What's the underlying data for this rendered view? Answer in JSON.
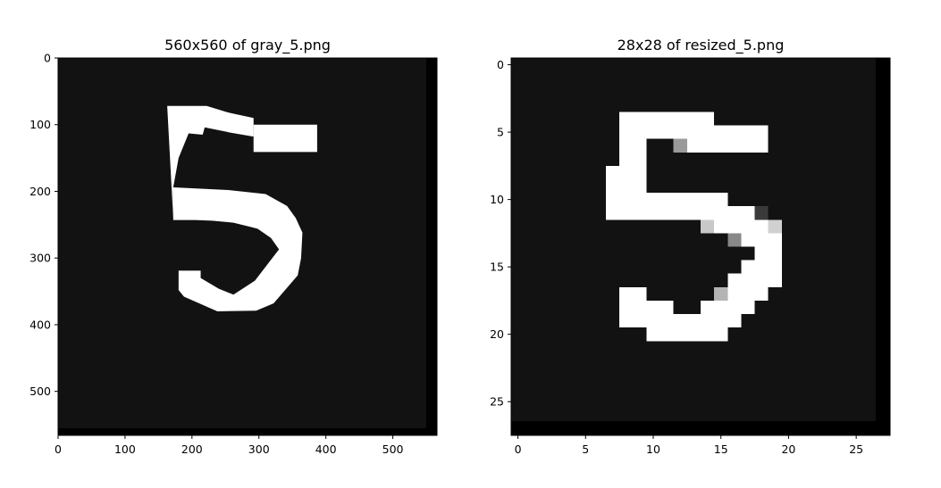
{
  "chart_data": [
    {
      "type": "heatmap",
      "title": "560x560 of gray_5.png",
      "xlabel": "",
      "ylabel": "",
      "xlim": [
        0,
        566
      ],
      "ylim": [
        566,
        0
      ],
      "x_ticks": [
        "0",
        "100",
        "200",
        "300",
        "400",
        "500"
      ],
      "y_ticks": [
        "0",
        "100",
        "200",
        "300",
        "400",
        "500"
      ],
      "x_tick_values": [
        0,
        100,
        200,
        300,
        400,
        500
      ],
      "y_tick_values": [
        0,
        100,
        200,
        300,
        400,
        500
      ],
      "colormap": "gray",
      "background_gray": "#121212",
      "border_color": "#000000",
      "content": "handwritten digit 5 in white",
      "stroke_polygons": [
        [
          [
            163,
            72
          ],
          [
            222,
            72
          ],
          [
            255,
            82
          ],
          [
            292,
            90
          ],
          [
            292,
            118
          ],
          [
            258,
            112
          ],
          [
            219,
            104
          ],
          [
            216,
            115
          ],
          [
            195,
            113
          ],
          [
            180,
            150
          ],
          [
            172,
            194
          ],
          [
            172,
            240
          ]
        ],
        [
          [
            292,
            100
          ],
          [
            387,
            100
          ],
          [
            387,
            141
          ],
          [
            292,
            141
          ]
        ],
        [
          [
            172,
            194
          ],
          [
            254,
            198
          ],
          [
            310,
            204
          ],
          [
            342,
            222
          ],
          [
            355,
            240
          ],
          [
            365,
            262
          ],
          [
            363,
            300
          ],
          [
            358,
            326
          ],
          [
            322,
            368
          ],
          [
            296,
            379
          ],
          [
            238,
            380
          ],
          [
            188,
            358
          ],
          [
            180,
            348
          ],
          [
            180,
            319
          ],
          [
            213,
            319
          ],
          [
            213,
            330
          ],
          [
            240,
            346
          ],
          [
            262,
            355
          ],
          [
            294,
            334
          ],
          [
            330,
            287
          ],
          [
            318,
            270
          ],
          [
            298,
            256
          ],
          [
            262,
            247
          ],
          [
            230,
            244
          ],
          [
            205,
            243
          ],
          [
            172,
            243
          ]
        ]
      ]
    },
    {
      "type": "heatmap",
      "title": "28x28 of resized_5.png",
      "xlabel": "",
      "ylabel": "",
      "xlim": [
        -0.5,
        27.5
      ],
      "ylim": [
        27.5,
        -0.5
      ],
      "x_ticks": [
        "0",
        "5",
        "10",
        "15",
        "20",
        "25"
      ],
      "y_ticks": [
        "0",
        "5",
        "10",
        "15",
        "20",
        "25"
      ],
      "x_tick_values": [
        0,
        5,
        10,
        15,
        20,
        25
      ],
      "y_tick_values": [
        0,
        5,
        10,
        15,
        20,
        25
      ],
      "colormap": "gray",
      "background_gray": "#121212",
      "border_color": "#000000",
      "pixels": [
        {
          "row": 4,
          "col_start": 8,
          "col_end": 14,
          "color": "#ffffff"
        },
        {
          "row": 5,
          "col_start": 8,
          "col_end": 18,
          "color": "#ffffff"
        },
        {
          "row": 6,
          "col_start": 8,
          "col_end": 9,
          "color": "#ffffff"
        },
        {
          "row": 6,
          "col_start": 12,
          "col_end": 12,
          "color": "#9a9a9a"
        },
        {
          "row": 6,
          "col_start": 13,
          "col_end": 18,
          "color": "#ffffff"
        },
        {
          "row": 7,
          "col_start": 8,
          "col_end": 9,
          "color": "#ffffff"
        },
        {
          "row": 8,
          "col_start": 7,
          "col_end": 9,
          "color": "#ffffff"
        },
        {
          "row": 9,
          "col_start": 7,
          "col_end": 9,
          "color": "#ffffff"
        },
        {
          "row": 10,
          "col_start": 7,
          "col_end": 15,
          "color": "#ffffff"
        },
        {
          "row": 11,
          "col_start": 7,
          "col_end": 17,
          "color": "#ffffff"
        },
        {
          "row": 11,
          "col_start": 18,
          "col_end": 18,
          "color": "#3a3a3a"
        },
        {
          "row": 12,
          "col_start": 14,
          "col_end": 14,
          "color": "#c8c8c8"
        },
        {
          "row": 12,
          "col_start": 15,
          "col_end": 18,
          "color": "#ffffff"
        },
        {
          "row": 12,
          "col_start": 19,
          "col_end": 19,
          "color": "#d0d0d0"
        },
        {
          "row": 13,
          "col_start": 16,
          "col_end": 16,
          "color": "#888888"
        },
        {
          "row": 13,
          "col_start": 17,
          "col_end": 19,
          "color": "#ffffff"
        },
        {
          "row": 14,
          "col_start": 18,
          "col_end": 19,
          "color": "#ffffff"
        },
        {
          "row": 15,
          "col_start": 17,
          "col_end": 19,
          "color": "#ffffff"
        },
        {
          "row": 16,
          "col_start": 16,
          "col_end": 19,
          "color": "#ffffff"
        },
        {
          "row": 17,
          "col_start": 8,
          "col_end": 9,
          "color": "#ffffff"
        },
        {
          "row": 17,
          "col_start": 15,
          "col_end": 15,
          "color": "#b4b4b4"
        },
        {
          "row": 17,
          "col_start": 16,
          "col_end": 18,
          "color": "#ffffff"
        },
        {
          "row": 18,
          "col_start": 8,
          "col_end": 11,
          "color": "#ffffff"
        },
        {
          "row": 18,
          "col_start": 14,
          "col_end": 17,
          "color": "#ffffff"
        },
        {
          "row": 19,
          "col_start": 8,
          "col_end": 16,
          "color": "#ffffff"
        },
        {
          "row": 20,
          "col_start": 10,
          "col_end": 15,
          "color": "#ffffff"
        }
      ]
    }
  ]
}
